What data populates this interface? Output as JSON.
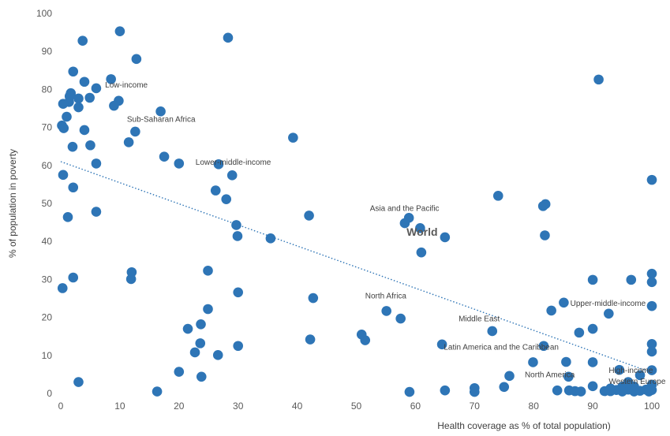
{
  "chart_data": {
    "type": "scatter",
    "xlabel": "Health coverage  as % of total population)",
    "ylabel": "% of population in poverty",
    "xlim": [
      0,
      100
    ],
    "ylim": [
      0,
      100
    ],
    "x_ticks": [
      "0",
      "10",
      "20",
      "30",
      "40",
      "50",
      "60",
      "70",
      "80",
      "90",
      "100"
    ],
    "y_ticks": [
      "0",
      "10",
      "20",
      "30",
      "40",
      "50",
      "60",
      "70",
      "80",
      "90",
      "100"
    ],
    "grid": false,
    "marker_color": "#2e75b6",
    "trendline": {
      "style": "dotted",
      "color": "#2e75b6",
      "x": [
        0,
        100
      ],
      "y": [
        61,
        5.5
      ]
    },
    "annotations": [
      {
        "text": "Low-income",
        "x": 7.5,
        "y": 80.5,
        "bold": false
      },
      {
        "text": "Sub-Saharan Africa",
        "x": 11.2,
        "y": 71.5,
        "bold": false
      },
      {
        "text": "Lower-middle-income",
        "x": 22.8,
        "y": 60.2,
        "bold": false
      },
      {
        "text": "Asia and the Pacific",
        "x": 52.3,
        "y": 48.0,
        "bold": false
      },
      {
        "text": "World",
        "x": 58.5,
        "y": 41.5,
        "bold": true
      },
      {
        "text": "North Africa",
        "x": 51.5,
        "y": 25.0,
        "bold": false
      },
      {
        "text": "Middle East",
        "x": 67.3,
        "y": 19.0,
        "bold": false
      },
      {
        "text": "Latin America and the Caribbean",
        "x": 64.8,
        "y": 11.5,
        "bold": false
      },
      {
        "text": "Upper-middle-income",
        "x": 86.2,
        "y": 23.0,
        "bold": false
      },
      {
        "text": "High-income",
        "x": 92.7,
        "y": 5.4,
        "bold": false
      },
      {
        "text": "North America",
        "x": 78.5,
        "y": 4.3,
        "bold": false
      },
      {
        "text": "Western Europe",
        "x": 92.7,
        "y": 2.5,
        "bold": false
      }
    ],
    "points": [
      {
        "x": 3.7,
        "y": 92.8
      },
      {
        "x": 10,
        "y": 95.3
      },
      {
        "x": 12.8,
        "y": 88
      },
      {
        "x": 28.3,
        "y": 93.6
      },
      {
        "x": 91,
        "y": 82.6
      },
      {
        "x": 2.1,
        "y": 84.7
      },
      {
        "x": 8.5,
        "y": 82.7
      },
      {
        "x": 4,
        "y": 82
      },
      {
        "x": 6,
        "y": 80.3
      },
      {
        "x": 1.7,
        "y": 79
      },
      {
        "x": 1.5,
        "y": 78.2
      },
      {
        "x": 4.9,
        "y": 77.8
      },
      {
        "x": 3,
        "y": 77.6
      },
      {
        "x": 9.8,
        "y": 77
      },
      {
        "x": 1.4,
        "y": 76.7
      },
      {
        "x": 0.4,
        "y": 76.2
      },
      {
        "x": 9,
        "y": 75.7
      },
      {
        "x": 3,
        "y": 75.3
      },
      {
        "x": 16.9,
        "y": 74.2
      },
      {
        "x": 1,
        "y": 72.8
      },
      {
        "x": 0.2,
        "y": 70.5
      },
      {
        "x": 0.5,
        "y": 69.8
      },
      {
        "x": 4,
        "y": 69.3
      },
      {
        "x": 12.6,
        "y": 68.9
      },
      {
        "x": 39.3,
        "y": 67.3
      },
      {
        "x": 11.5,
        "y": 66.1
      },
      {
        "x": 5,
        "y": 65.3
      },
      {
        "x": 2,
        "y": 64.9
      },
      {
        "x": 17.5,
        "y": 62.3
      },
      {
        "x": 6,
        "y": 60.5
      },
      {
        "x": 20,
        "y": 60.5
      },
      {
        "x": 26.7,
        "y": 60.3
      },
      {
        "x": 0.4,
        "y": 57.5
      },
      {
        "x": 29,
        "y": 57.4
      },
      {
        "x": 100,
        "y": 56.2
      },
      {
        "x": 2.1,
        "y": 54.2
      },
      {
        "x": 26.2,
        "y": 53.4
      },
      {
        "x": 74,
        "y": 52
      },
      {
        "x": 28,
        "y": 51.1
      },
      {
        "x": 82,
        "y": 49.8
      },
      {
        "x": 81.6,
        "y": 49.3
      },
      {
        "x": 6,
        "y": 47.8
      },
      {
        "x": 42,
        "y": 46.8
      },
      {
        "x": 1.2,
        "y": 46.4
      },
      {
        "x": 58.9,
        "y": 46.2
      },
      {
        "x": 58.2,
        "y": 44.8
      },
      {
        "x": 29.7,
        "y": 44.3
      },
      {
        "x": 60.8,
        "y": 43.5
      },
      {
        "x": 29.9,
        "y": 41.4
      },
      {
        "x": 81.9,
        "y": 41.6
      },
      {
        "x": 65,
        "y": 41.1
      },
      {
        "x": 35.5,
        "y": 40.8
      },
      {
        "x": 61,
        "y": 37.1
      },
      {
        "x": 12,
        "y": 31.9
      },
      {
        "x": 24.9,
        "y": 32.3
      },
      {
        "x": 100,
        "y": 31.5
      },
      {
        "x": 2.1,
        "y": 30.5
      },
      {
        "x": 11.9,
        "y": 30.1
      },
      {
        "x": 90,
        "y": 29.9
      },
      {
        "x": 96.5,
        "y": 29.9
      },
      {
        "x": 100,
        "y": 29.3
      },
      {
        "x": 0.3,
        "y": 27.7
      },
      {
        "x": 30,
        "y": 26.6
      },
      {
        "x": 42.7,
        "y": 25.1
      },
      {
        "x": 85.1,
        "y": 23.9
      },
      {
        "x": 100,
        "y": 23
      },
      {
        "x": 24.9,
        "y": 22.2
      },
      {
        "x": 55.1,
        "y": 21.7
      },
      {
        "x": 83,
        "y": 21.8
      },
      {
        "x": 92.7,
        "y": 21
      },
      {
        "x": 57.5,
        "y": 19.7
      },
      {
        "x": 23.7,
        "y": 18.2
      },
      {
        "x": 21.5,
        "y": 17
      },
      {
        "x": 90,
        "y": 17
      },
      {
        "x": 73,
        "y": 16.4
      },
      {
        "x": 87.7,
        "y": 16
      },
      {
        "x": 50.9,
        "y": 15.5
      },
      {
        "x": 51.5,
        "y": 14
      },
      {
        "x": 42.2,
        "y": 14.2
      },
      {
        "x": 23.6,
        "y": 13.2
      },
      {
        "x": 64.5,
        "y": 12.9
      },
      {
        "x": 100,
        "y": 13
      },
      {
        "x": 30,
        "y": 12.5
      },
      {
        "x": 81.7,
        "y": 12.5
      },
      {
        "x": 100,
        "y": 11
      },
      {
        "x": 22.7,
        "y": 10.8
      },
      {
        "x": 26.6,
        "y": 10.1
      },
      {
        "x": 79.9,
        "y": 8.2
      },
      {
        "x": 85.5,
        "y": 8.3
      },
      {
        "x": 90,
        "y": 8.2
      },
      {
        "x": 75.9,
        "y": 4.6
      },
      {
        "x": 94.5,
        "y": 6.2
      },
      {
        "x": 100,
        "y": 6.1
      },
      {
        "x": 20,
        "y": 5.7
      },
      {
        "x": 23.8,
        "y": 4.4
      },
      {
        "x": 85.9,
        "y": 4.4
      },
      {
        "x": 98,
        "y": 4.8
      },
      {
        "x": 3,
        "y": 3
      },
      {
        "x": 96,
        "y": 3
      },
      {
        "x": 100,
        "y": 2.3
      },
      {
        "x": 90,
        "y": 1.9
      },
      {
        "x": 95,
        "y": 1.8
      },
      {
        "x": 97,
        "y": 1.8
      },
      {
        "x": 75,
        "y": 1.7
      },
      {
        "x": 70,
        "y": 1.4
      },
      {
        "x": 93,
        "y": 1.3
      },
      {
        "x": 94,
        "y": 0.9
      },
      {
        "x": 96,
        "y": 1
      },
      {
        "x": 99,
        "y": 1
      },
      {
        "x": 100,
        "y": 0.9
      },
      {
        "x": 65,
        "y": 0.8
      },
      {
        "x": 84,
        "y": 0.8
      },
      {
        "x": 86,
        "y": 0.8
      },
      {
        "x": 87,
        "y": 0.6
      },
      {
        "x": 88,
        "y": 0.5
      },
      {
        "x": 92,
        "y": 0.6
      },
      {
        "x": 93,
        "y": 0.6
      },
      {
        "x": 95,
        "y": 0.5
      },
      {
        "x": 97,
        "y": 0.5
      },
      {
        "x": 98,
        "y": 0.7
      },
      {
        "x": 99.5,
        "y": 0.5
      },
      {
        "x": 16.3,
        "y": 0.5
      },
      {
        "x": 59,
        "y": 0.4
      },
      {
        "x": 70,
        "y": 0.4
      }
    ]
  }
}
